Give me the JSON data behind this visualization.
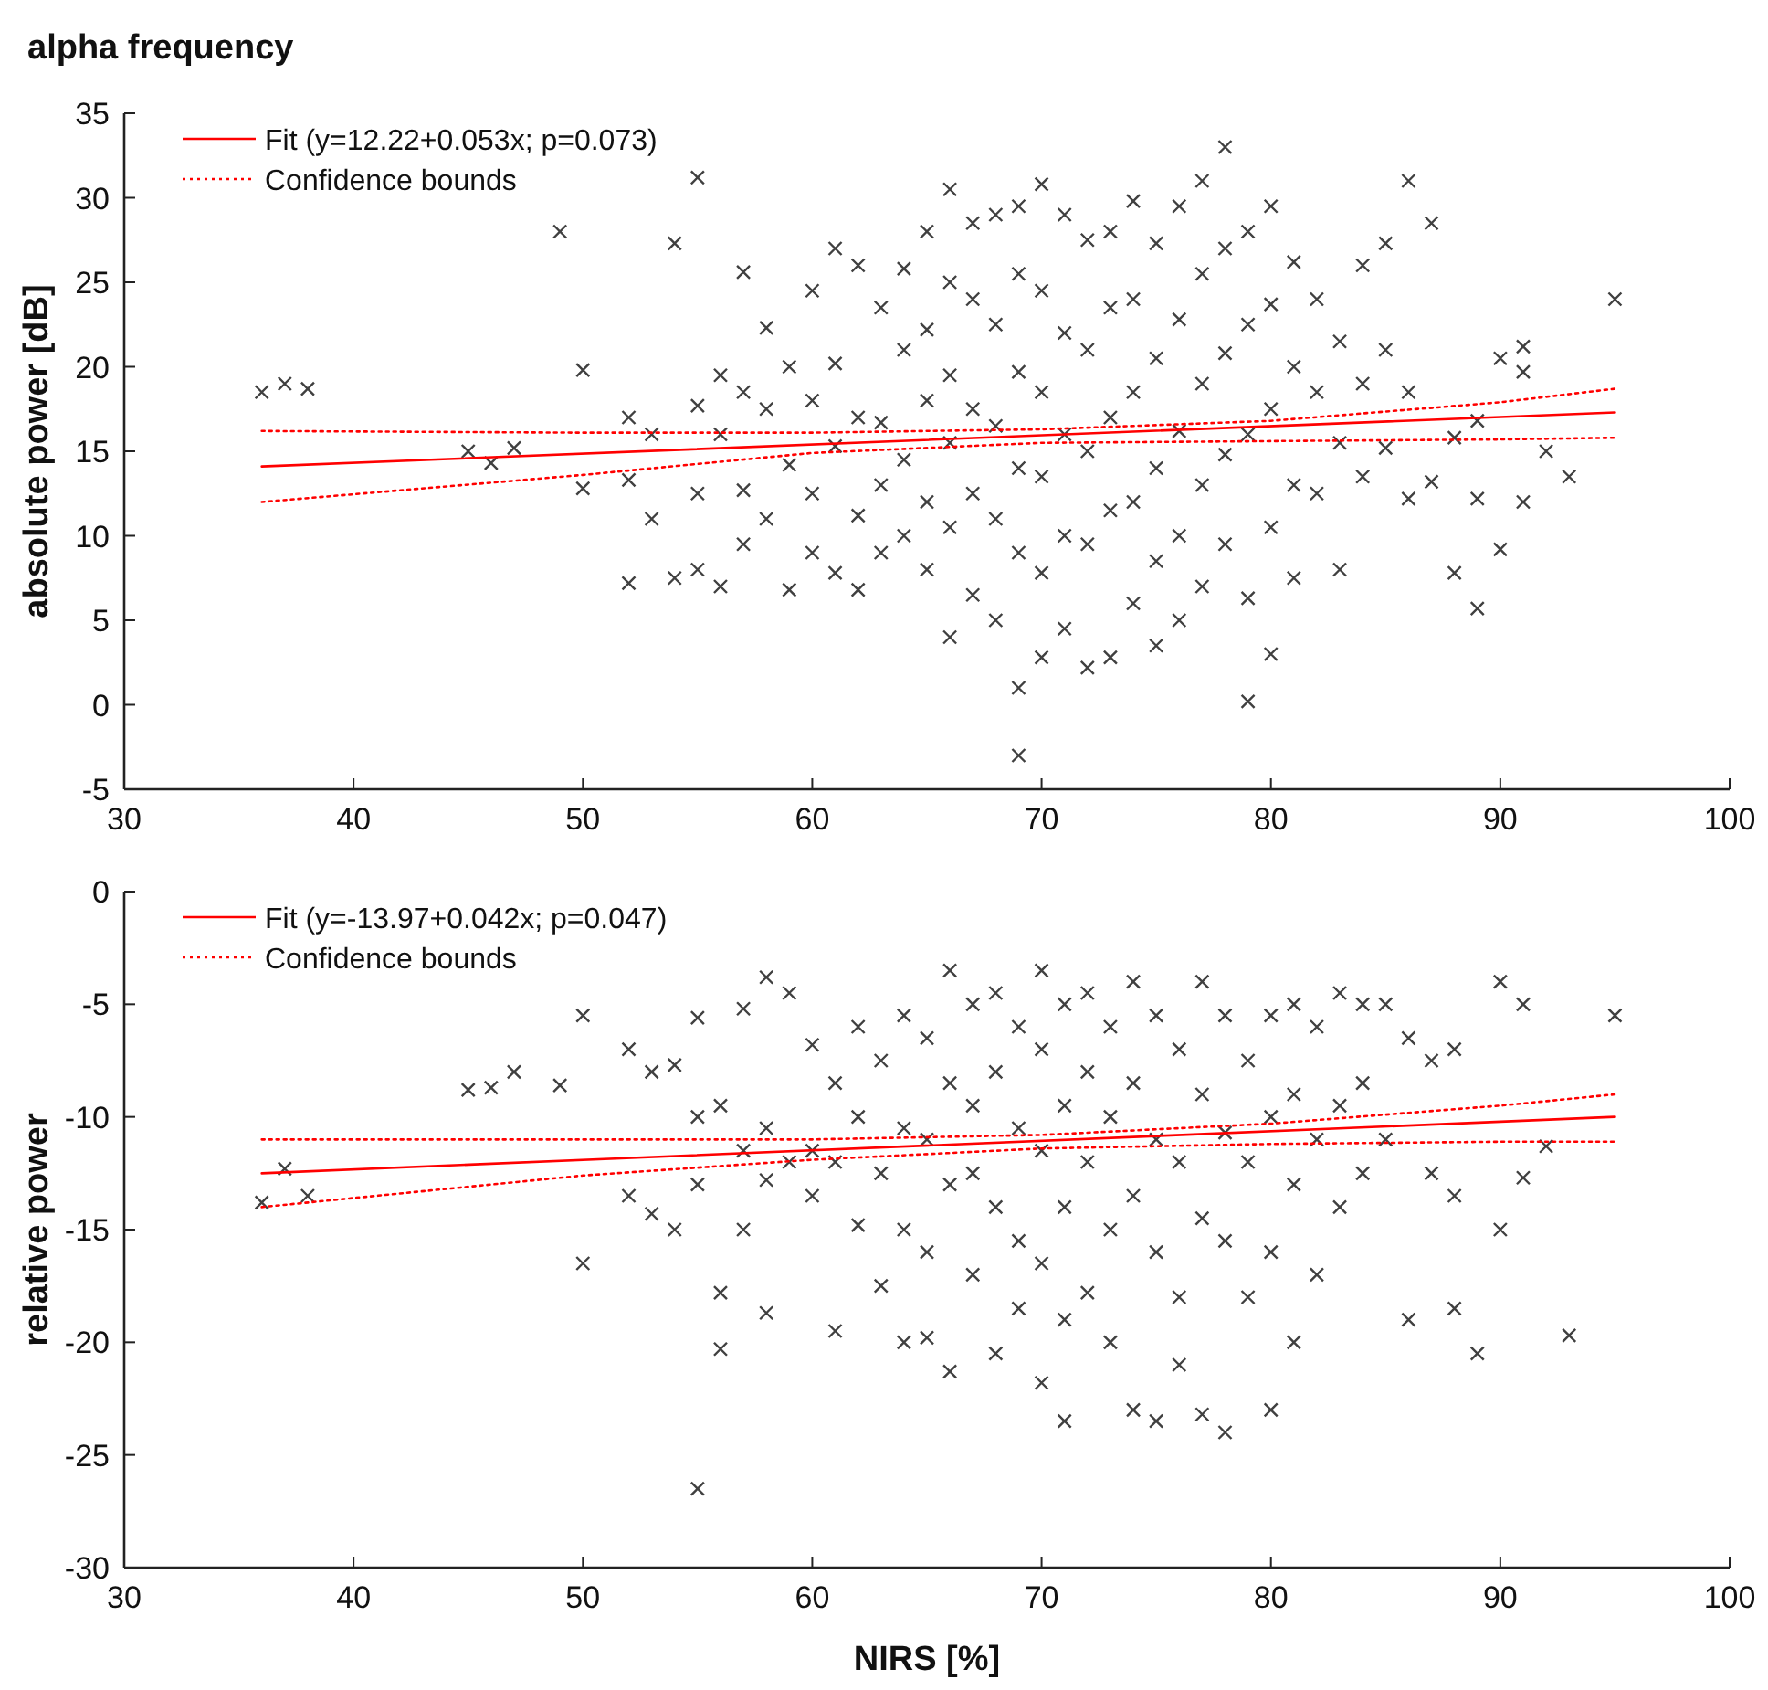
{
  "chart_data": [
    {
      "type": "scatter",
      "title": "alpha frequency",
      "ylabel": "absolute power [dB]",
      "xlim": [
        30,
        100
      ],
      "xticks": [
        30,
        40,
        50,
        60,
        70,
        80,
        90,
        100
      ],
      "ylim": [
        -5,
        35
      ],
      "yticks": [
        -5,
        0,
        5,
        10,
        15,
        20,
        25,
        30,
        35
      ],
      "grid": false,
      "legend": "top left",
      "series": [
        {
          "type": "line",
          "name": "Fit (y=12.22+0.053x; p=0.073)",
          "color": "#ff0000",
          "line_style": "solid",
          "x": [
            36,
            95
          ],
          "values": [
            14.1,
            17.3
          ]
        },
        {
          "type": "line",
          "name": "Confidence bounds",
          "color": "#ff0000",
          "line_style": "dotted",
          "x": [
            36,
            50,
            60,
            70,
            80,
            90,
            95
          ],
          "values": [
            16.2,
            16.1,
            16.1,
            16.3,
            16.8,
            17.9,
            18.7
          ]
        },
        {
          "type": "line",
          "color": "#ff0000",
          "line_style": "dotted",
          "x": [
            36,
            50,
            60,
            70,
            80,
            90,
            95
          ],
          "values": [
            12.0,
            13.6,
            14.9,
            15.5,
            15.6,
            15.7,
            15.8
          ]
        },
        {
          "color": "#404040",
          "marker": "cross",
          "x": [
            36,
            37,
            38,
            45,
            46,
            47,
            49,
            50,
            50,
            52,
            52,
            52,
            53,
            53,
            54,
            54,
            55,
            55,
            55,
            55,
            56,
            56,
            56,
            57,
            57,
            57,
            57,
            58,
            58,
            58,
            59,
            59,
            59,
            60,
            60,
            60,
            60,
            61,
            61,
            61,
            61,
            62,
            62,
            62,
            62,
            63,
            63,
            63,
            63,
            64,
            64,
            64,
            64,
            65,
            65,
            65,
            65,
            65,
            66,
            66,
            66,
            66,
            66,
            66,
            67,
            67,
            67,
            67,
            67,
            68,
            68,
            68,
            68,
            68,
            69,
            69,
            69,
            69,
            69,
            69,
            69,
            70,
            70,
            70,
            70,
            70,
            70,
            71,
            71,
            71,
            71,
            71,
            72,
            72,
            72,
            72,
            72,
            73,
            73,
            73,
            73,
            73,
            74,
            74,
            74,
            74,
            74,
            75,
            75,
            75,
            75,
            75,
            76,
            76,
            76,
            76,
            76,
            77,
            77,
            77,
            77,
            77,
            78,
            78,
            78,
            78,
            78,
            79,
            79,
            79,
            79,
            79,
            80,
            80,
            80,
            80,
            80,
            81,
            81,
            81,
            81,
            82,
            82,
            82,
            83,
            83,
            83,
            84,
            84,
            84,
            85,
            85,
            85,
            86,
            86,
            86,
            87,
            87,
            88,
            88,
            89,
            89,
            89,
            90,
            90,
            91,
            91,
            91,
            92,
            93,
            95
          ],
          "values": [
            18.5,
            19,
            18.7,
            15,
            14.3,
            15.2,
            28,
            19.8,
            12.8,
            17,
            13.3,
            7.2,
            11,
            16,
            27.3,
            7.5,
            31.2,
            17.7,
            12.5,
            8,
            19.5,
            16,
            7,
            25.6,
            18.5,
            12.7,
            9.5,
            22.3,
            17.5,
            11,
            20,
            14.2,
            6.8,
            24.5,
            18,
            12.5,
            9,
            27,
            20.2,
            15.3,
            7.8,
            26,
            17,
            11.2,
            6.8,
            23.5,
            16.7,
            13,
            9,
            25.8,
            21,
            14.5,
            10,
            28,
            22.2,
            18,
            12,
            8,
            30.5,
            25,
            19.5,
            15.5,
            10.5,
            4,
            28.5,
            24,
            17.5,
            12.5,
            6.5,
            29,
            22.5,
            16.5,
            11,
            5,
            29.5,
            25.5,
            19.7,
            14,
            9,
            1,
            -3,
            30.8,
            24.5,
            18.5,
            13.5,
            7.8,
            2.8,
            29,
            22,
            16,
            10,
            4.5,
            27.5,
            21,
            15,
            9.5,
            2.2,
            28,
            23.5,
            17,
            11.5,
            2.8,
            29.8,
            24,
            18.5,
            12,
            6,
            27.3,
            20.5,
            14,
            8.5,
            3.5,
            29.5,
            22.8,
            16.2,
            10,
            5,
            31,
            25.5,
            19,
            13,
            7,
            33,
            27,
            20.8,
            14.8,
            9.5,
            28,
            22.5,
            16,
            6.3,
            0.2,
            29.5,
            23.7,
            17.5,
            10.5,
            3,
            26.2,
            20,
            13,
            7.5,
            24,
            18.5,
            12.5,
            21.5,
            15.5,
            8,
            26,
            19,
            13.5,
            27.3,
            21,
            15.2,
            31,
            18.5,
            12.2,
            28.5,
            13.2,
            15.8,
            7.8,
            16.8,
            12.2,
            5.7,
            20.5,
            9.2,
            21.2,
            19.7,
            12,
            15,
            13.5,
            24
          ]
        }
      ]
    },
    {
      "type": "scatter",
      "xlabel": "NIRS [%]",
      "ylabel": "relative power",
      "xlim": [
        30,
        100
      ],
      "xticks": [
        30,
        40,
        50,
        60,
        70,
        80,
        90,
        100
      ],
      "ylim": [
        -30,
        0
      ],
      "yticks": [
        -30,
        -25,
        -20,
        -15,
        -10,
        -5,
        0
      ],
      "grid": false,
      "legend": "top left",
      "series": [
        {
          "type": "line",
          "name": "Fit (y=-13.97+0.042x; p=0.047)",
          "color": "#ff0000",
          "line_style": "solid",
          "x": [
            36,
            95
          ],
          "values": [
            -12.5,
            -10.0
          ]
        },
        {
          "type": "line",
          "name": "Confidence bounds",
          "color": "#ff0000",
          "line_style": "dotted",
          "x": [
            36,
            50,
            60,
            70,
            80,
            90,
            95
          ],
          "values": [
            -11.0,
            -11.0,
            -11.0,
            -10.8,
            -10.3,
            -9.5,
            -9.0
          ]
        },
        {
          "type": "line",
          "color": "#ff0000",
          "line_style": "dotted",
          "x": [
            36,
            50,
            60,
            70,
            80,
            90,
            95
          ],
          "values": [
            -14.0,
            -12.6,
            -11.9,
            -11.4,
            -11.2,
            -11.1,
            -11.1
          ]
        },
        {
          "color": "#404040",
          "marker": "cross",
          "x": [
            36,
            37,
            38,
            45,
            46,
            47,
            49,
            50,
            50,
            52,
            52,
            53,
            53,
            54,
            54,
            55,
            55,
            55,
            55,
            56,
            56,
            56,
            57,
            57,
            57,
            58,
            58,
            58,
            58,
            59,
            59,
            60,
            60,
            60,
            61,
            61,
            61,
            62,
            62,
            62,
            63,
            63,
            63,
            64,
            64,
            64,
            64,
            65,
            65,
            65,
            65,
            66,
            66,
            66,
            66,
            67,
            67,
            67,
            67,
            68,
            68,
            68,
            68,
            69,
            69,
            69,
            69,
            70,
            70,
            70,
            70,
            70,
            71,
            71,
            71,
            71,
            71,
            72,
            72,
            72,
            72,
            73,
            73,
            73,
            73,
            74,
            74,
            74,
            74,
            75,
            75,
            75,
            75,
            76,
            76,
            76,
            76,
            77,
            77,
            77,
            77,
            78,
            78,
            78,
            78,
            79,
            79,
            79,
            80,
            80,
            80,
            80,
            81,
            81,
            81,
            81,
            82,
            82,
            82,
            83,
            83,
            83,
            84,
            84,
            84,
            85,
            85,
            86,
            86,
            87,
            87,
            88,
            88,
            88,
            89,
            90,
            90,
            91,
            91,
            92,
            93,
            95
          ],
          "values": [
            -13.8,
            -12.3,
            -13.5,
            -8.8,
            -8.7,
            -8,
            -8.6,
            -5.5,
            -16.5,
            -7,
            -13.5,
            -8,
            -14.3,
            -7.7,
            -15,
            -5.6,
            -10,
            -13,
            -26.5,
            -9.5,
            -17.8,
            -20.3,
            -5.2,
            -11.5,
            -15,
            -3.8,
            -10.5,
            -12.8,
            -18.7,
            -4.5,
            -12,
            -6.8,
            -11.5,
            -13.5,
            -8.5,
            -12,
            -19.5,
            -6,
            -10,
            -14.8,
            -7.5,
            -12.5,
            -17.5,
            -5.5,
            -10.5,
            -15,
            -20,
            -6.5,
            -11,
            -16,
            -19.8,
            -3.5,
            -8.5,
            -13,
            -21.3,
            -5,
            -9.5,
            -12.5,
            -17,
            -4.5,
            -8,
            -14,
            -20.5,
            -6,
            -10.5,
            -15.5,
            -18.5,
            -3.5,
            -7,
            -11.5,
            -16.5,
            -21.8,
            -5,
            -9.5,
            -14,
            -19,
            -23.5,
            -4.5,
            -8,
            -12,
            -17.8,
            -6,
            -10,
            -15,
            -20,
            -4,
            -8.5,
            -13.5,
            -23,
            -5.5,
            -11,
            -16,
            -23.5,
            -7,
            -12,
            -18,
            -21,
            -4,
            -9,
            -14.5,
            -23.2,
            -5.5,
            -10.7,
            -15.5,
            -24,
            -7.5,
            -12,
            -18,
            -5.5,
            -10,
            -16,
            -23,
            -5,
            -9,
            -13,
            -20,
            -6,
            -11,
            -17,
            -4.5,
            -9.5,
            -14,
            -5,
            -8.5,
            -12.5,
            -5,
            -11,
            -6.5,
            -19,
            -7.5,
            -12.5,
            -7,
            -13.5,
            -18.5,
            -20.5,
            -4,
            -15,
            -5,
            -12.7,
            -11.3,
            -19.7,
            -5.5
          ]
        }
      ]
    }
  ]
}
